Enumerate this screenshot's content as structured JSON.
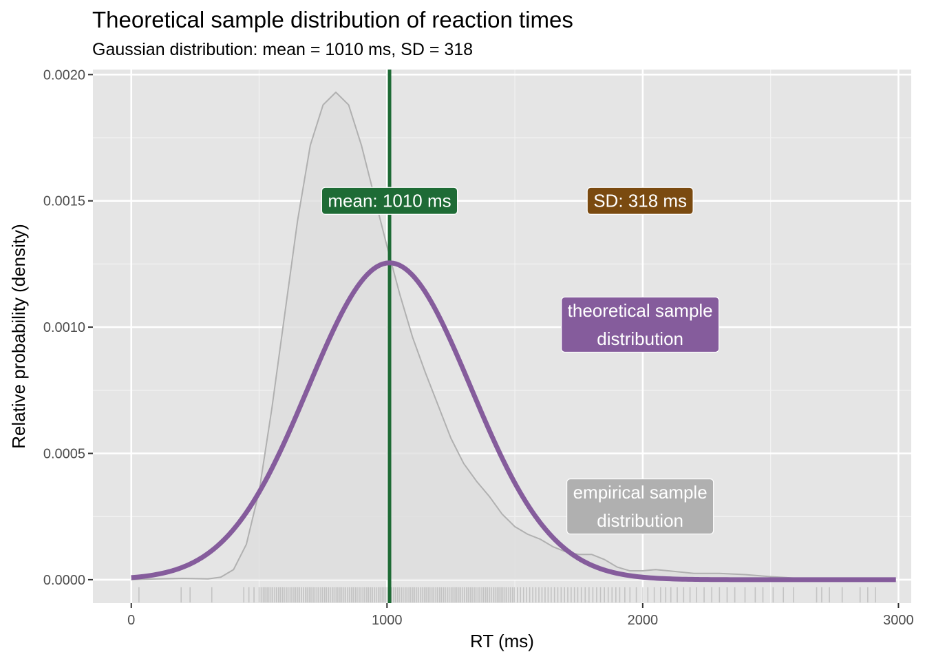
{
  "chart_data": {
    "type": "area",
    "title": "Theoretical sample distribution of reaction times",
    "subtitle": "Gaussian distribution: mean = 1010 ms, SD = 318",
    "xlabel": "RT (ms)",
    "ylabel": "Relative probability (density)",
    "xlim": [
      -150,
      3050
    ],
    "ylim": [
      -9.3e-05,
      0.00202
    ],
    "x_ticks": [
      0,
      1000,
      2000,
      3000
    ],
    "x_tick_labels": [
      "0",
      "1000",
      "2000",
      "3000"
    ],
    "y_ticks": [
      0.0,
      0.0005,
      0.001,
      0.0015,
      0.002
    ],
    "y_tick_labels": [
      "0.0000",
      "0.0005",
      "0.0010",
      "0.0015",
      "0.0020"
    ],
    "grid": true,
    "theoretical": {
      "mean": 1010,
      "sd": 318,
      "x_min": 0,
      "x_max": 2990,
      "color": "#855c9c"
    },
    "empirical_density": {
      "color": "#b0b0b0",
      "fill": "#dcdcdc",
      "x": [
        0,
        100,
        200,
        300,
        350,
        400,
        450,
        500,
        550,
        600,
        650,
        700,
        750,
        800,
        850,
        900,
        950,
        1000,
        1050,
        1100,
        1150,
        1200,
        1250,
        1300,
        1350,
        1400,
        1450,
        1500,
        1550,
        1600,
        1650,
        1700,
        1750,
        1800,
        1850,
        1900,
        1950,
        2000,
        2050,
        2100,
        2150,
        2200,
        2300,
        2400,
        2500,
        2600,
        2700,
        2800,
        2900,
        2990
      ],
      "y": [
        0.0,
        3e-06,
        5e-06,
        3e-06,
        1e-05,
        4e-05,
        0.00014,
        0.00035,
        0.00068,
        0.00105,
        0.00142,
        0.00172,
        0.00188,
        0.00193,
        0.00188,
        0.00172,
        0.00152,
        0.00132,
        0.00113,
        0.00096,
        0.00082,
        0.00069,
        0.00056,
        0.00046,
        0.00039,
        0.00033,
        0.00026,
        0.00021,
        0.00018,
        0.00016,
        0.00013,
        0.00011,
        0.0001,
        0.0001,
        8e-05,
        5e-05,
        3.5e-05,
        3.5e-05,
        4e-05,
        3.5e-05,
        3e-05,
        2.5e-05,
        2.5e-05,
        2e-05,
        1.2e-05,
        6e-06,
        3e-06,
        2e-06,
        1e-06,
        0.0
      ]
    },
    "mean_line": {
      "x": 1010,
      "color": "#1e6b35"
    },
    "rug": [
      30,
      195,
      230,
      315,
      440,
      460,
      480,
      500,
      508,
      516,
      523,
      531,
      538,
      546,
      553,
      561,
      568,
      576,
      583,
      591,
      598,
      606,
      613,
      621,
      628,
      636,
      643,
      651,
      658,
      666,
      673,
      681,
      688,
      696,
      703,
      711,
      718,
      726,
      733,
      741,
      748,
      756,
      763,
      771,
      778,
      786,
      793,
      801,
      808,
      816,
      823,
      831,
      838,
      846,
      853,
      861,
      868,
      876,
      883,
      891,
      898,
      906,
      913,
      921,
      928,
      936,
      943,
      951,
      958,
      966,
      973,
      981,
      988,
      996,
      1003,
      1011,
      1018,
      1026,
      1033,
      1041,
      1048,
      1056,
      1063,
      1071,
      1078,
      1086,
      1093,
      1101,
      1108,
      1116,
      1123,
      1131,
      1138,
      1146,
      1153,
      1161,
      1168,
      1176,
      1183,
      1191,
      1198,
      1206,
      1213,
      1221,
      1228,
      1236,
      1243,
      1251,
      1258,
      1266,
      1273,
      1281,
      1288,
      1296,
      1303,
      1311,
      1318,
      1326,
      1333,
      1341,
      1348,
      1356,
      1363,
      1371,
      1378,
      1386,
      1393,
      1401,
      1408,
      1416,
      1423,
      1431,
      1438,
      1446,
      1453,
      1461,
      1468,
      1476,
      1483,
      1491,
      1498,
      1510,
      1522,
      1534,
      1546,
      1558,
      1570,
      1582,
      1594,
      1606,
      1618,
      1630,
      1642,
      1655,
      1668,
      1681,
      1694,
      1707,
      1720,
      1733,
      1746,
      1760,
      1775,
      1790,
      1805,
      1820,
      1835,
      1850,
      1865,
      1880,
      1895,
      1910,
      1930,
      1950,
      1975,
      2000,
      2020,
      2045,
      2070,
      2090,
      2110,
      2135,
      2160,
      2185,
      2210,
      2240,
      2270,
      2300,
      2330,
      2360,
      2400,
      2440,
      2470,
      2510,
      2550,
      2590,
      2680,
      2700,
      2730,
      2780,
      2850,
      2880,
      2910
    ],
    "labels": [
      {
        "text": "mean: 1010 ms",
        "x": 1010,
        "y": 0.0015,
        "fill": "#1e6b35"
      },
      {
        "text": "SD: 318 ms",
        "x": 1990,
        "y": 0.0015,
        "fill": "#7a4a10"
      },
      {
        "text": [
          "theoretical sample",
          "distribution"
        ],
        "x": 1990,
        "y": 0.00101,
        "fill": "#855c9c"
      },
      {
        "text": [
          "empirical sample",
          "distribution"
        ],
        "x": 1990,
        "y": 0.00029,
        "fill": "#b0b0b0"
      }
    ]
  }
}
